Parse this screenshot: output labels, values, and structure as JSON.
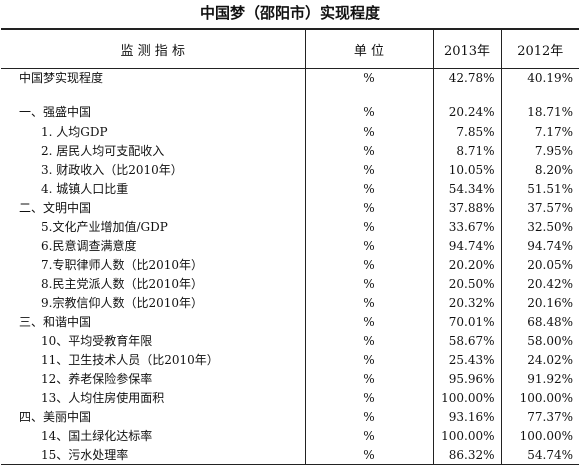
{
  "title": "中国梦（邵阳市）实现程度",
  "table": {
    "header": [
      "监 测 指 标",
      "单 位",
      "2013年",
      "2012年"
    ],
    "rows": [
      [
        "中国梦实现程度",
        "%",
        "42.78%",
        "40.19%"
      ],
      [
        "一、强盛中国",
        "%",
        "20.24%",
        "18.71%"
      ],
      [
        "1. 人均GDP",
        "%",
        "7.85%",
        "7.17%"
      ],
      [
        "2. 居民人均可支配收入",
        "%",
        "8.71%",
        "7.95%"
      ],
      [
        "3. 财政收入（比2010年）",
        "%",
        "10.05%",
        "8.20%"
      ],
      [
        "4. 城镇人口比重",
        "%",
        "54.34%",
        "51.51%"
      ],
      [
        "二、文明中国",
        "%",
        "37.88%",
        "37.57%"
      ],
      [
        "5.文化产业增加值/GDP",
        "%",
        "33.67%",
        "32.50%"
      ],
      [
        "6.民意调查满意度",
        "%",
        "94.74%",
        "94.74%"
      ],
      [
        "7.专职律师人数（比2010年）",
        "%",
        "20.20%",
        "20.05%"
      ],
      [
        "8.民主党派人数（比2010年）",
        "%",
        "20.50%",
        "20.42%"
      ],
      [
        "9.宗教信仰人数（比2010年）",
        "%",
        "20.32%",
        "20.16%"
      ],
      [
        "三、和谐中国",
        "%",
        "70.01%",
        "68.48%"
      ],
      [
        "10、平均受教育年限",
        "%",
        "58.67%",
        "58.00%"
      ],
      [
        "11、卫生技术人员（比2010年）",
        "%",
        "25.43%",
        "24.02%"
      ],
      [
        "12、养老保险参保率",
        "%",
        "95.96%",
        "91.92%"
      ],
      [
        "13、人均住房使用面积",
        "%",
        "100.00%",
        "100.00%"
      ],
      [
        "四、美丽中国",
        "%",
        "93.16%",
        "77.37%"
      ],
      [
        "14、国土绿化达标率",
        "%",
        "100.00%",
        "100.00%"
      ],
      [
        "15、污水处理率",
        "%",
        "86.32%",
        "54.74%"
      ]
    ]
  }
}
